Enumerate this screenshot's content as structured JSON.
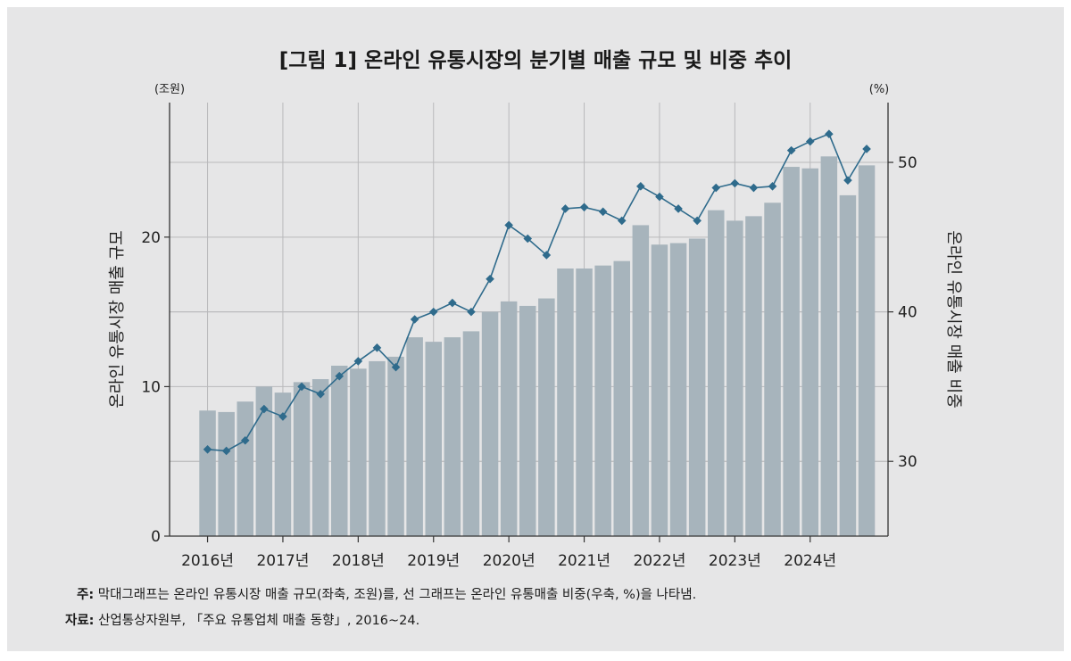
{
  "title": "[그림 1] 온라인 유통시장의 분기별 매출 규모 및 비중 추이",
  "notes": {
    "note_label": "주:",
    "note_text": "막대그래프는 온라인 유통시장 매출 규모(좌축, 조원)를, 선 그래프는 온라인 유통매출 비중(우축, %)을 나타냄.",
    "source_label": "자료:",
    "source_text": "산업통상자원부, 「주요 유통업체 매출 동향」, 2016~24."
  },
  "colors": {
    "bar": "#a7b4bc",
    "line": "#2f6b8c",
    "grid": "#b9b9bb",
    "axis": "#333333"
  },
  "chart_data": {
    "type": "bar",
    "x_tick_labels": [
      "2016년",
      "2017년",
      "2018년",
      "2019년",
      "2020년",
      "2021년",
      "2022년",
      "2023년",
      "2024년"
    ],
    "quarters_per_year": 4,
    "y_left": {
      "unit_label": "(조원)",
      "label": "온라인 유통시장 매출 규모",
      "ticks": [
        0,
        10,
        20
      ],
      "range": [
        0,
        29
      ]
    },
    "y_right": {
      "unit_label": "(%)",
      "label": "온라인 유통시장 매출 비중",
      "ticks": [
        30,
        40,
        50
      ],
      "range": [
        25,
        54
      ]
    },
    "series": [
      {
        "kind": "bar",
        "axis": "left",
        "values": [
          8.4,
          8.3,
          9.0,
          10.0,
          9.6,
          10.3,
          10.5,
          11.4,
          11.2,
          11.7,
          12.0,
          13.3,
          13.0,
          13.3,
          13.7,
          15.0,
          15.7,
          15.4,
          15.9,
          17.9,
          17.9,
          18.1,
          18.4,
          20.8,
          19.5,
          19.6,
          19.9,
          21.8,
          21.1,
          21.4,
          22.3,
          24.7,
          24.6,
          25.4,
          22.8,
          24.8
        ]
      },
      {
        "kind": "line",
        "axis": "right",
        "values": [
          30.8,
          30.7,
          31.4,
          33.5,
          33.0,
          35.0,
          34.5,
          35.7,
          36.7,
          37.6,
          36.3,
          39.5,
          40.0,
          40.6,
          40.0,
          42.2,
          45.8,
          44.9,
          43.8,
          46.9,
          47.0,
          46.7,
          46.1,
          48.4,
          47.7,
          46.9,
          46.1,
          48.3,
          48.6,
          48.3,
          48.4,
          50.8,
          51.4,
          51.9,
          48.8,
          50.9
        ]
      }
    ],
    "grid": true,
    "legend": "none"
  }
}
